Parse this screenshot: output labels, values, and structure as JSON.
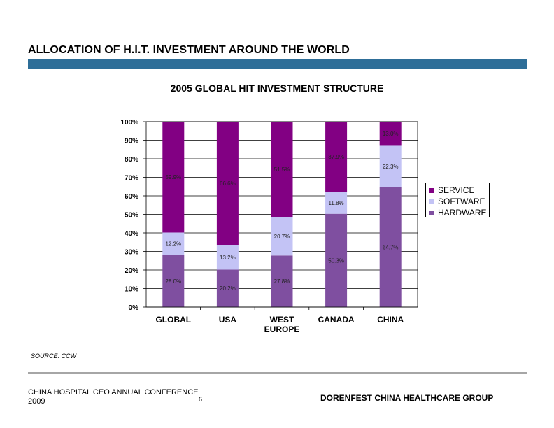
{
  "header": {
    "title": "ALLOCATION OF H.I.T. INVESTMENT AROUND THE WORLD",
    "bar_color": "#2e6e98"
  },
  "chart_data": {
    "type": "bar",
    "stacked": true,
    "title": "2005 GLOBAL HIT INVESTMENT STRUCTURE",
    "categories": [
      [
        "GLOBAL"
      ],
      [
        "USA"
      ],
      [
        "WEST",
        "EUROPE"
      ],
      [
        "CANADA"
      ],
      [
        "CHINA"
      ]
    ],
    "series": [
      {
        "name": "HARDWARE",
        "color": "#7f4fa0",
        "values": [
          28.0,
          20.2,
          27.8,
          50.3,
          64.7
        ],
        "labels": [
          "28.0%",
          "20.2%",
          "27.8%",
          "50.3%",
          "64.7%"
        ]
      },
      {
        "name": "SOFTWARE",
        "color": "#c3c3f5",
        "values": [
          12.2,
          13.2,
          20.7,
          11.8,
          22.3
        ],
        "labels": [
          "12.2%",
          "13.2%",
          "20.7%",
          "11.8%",
          "22.3%"
        ]
      },
      {
        "name": "SERVICE",
        "color": "#820083",
        "values": [
          59.9,
          66.6,
          51.5,
          37.9,
          13.0
        ],
        "labels": [
          "59.9%",
          "66.6%",
          "51.5%",
          "37.9%",
          "13.0%"
        ]
      }
    ],
    "ylim": [
      0,
      100
    ],
    "yticks": [
      0,
      10,
      20,
      30,
      40,
      50,
      60,
      70,
      80,
      90,
      100
    ],
    "ytick_labels": [
      "0%",
      "10%",
      "20%",
      "30%",
      "40%",
      "50%",
      "60%",
      "70%",
      "80%",
      "90%",
      "100%"
    ],
    "grid": true,
    "legend_position": "right",
    "legend_order": [
      "SERVICE",
      "SOFTWARE",
      "HARDWARE"
    ]
  },
  "source": "SOURCE: CCW",
  "footer": {
    "left_line1": "CHINA HOSPITAL CEO ANNUAL CONFERENCE",
    "left_line2": "2009",
    "page_number": "6",
    "right": "DORENFEST CHINA HEALTHCARE GROUP"
  }
}
